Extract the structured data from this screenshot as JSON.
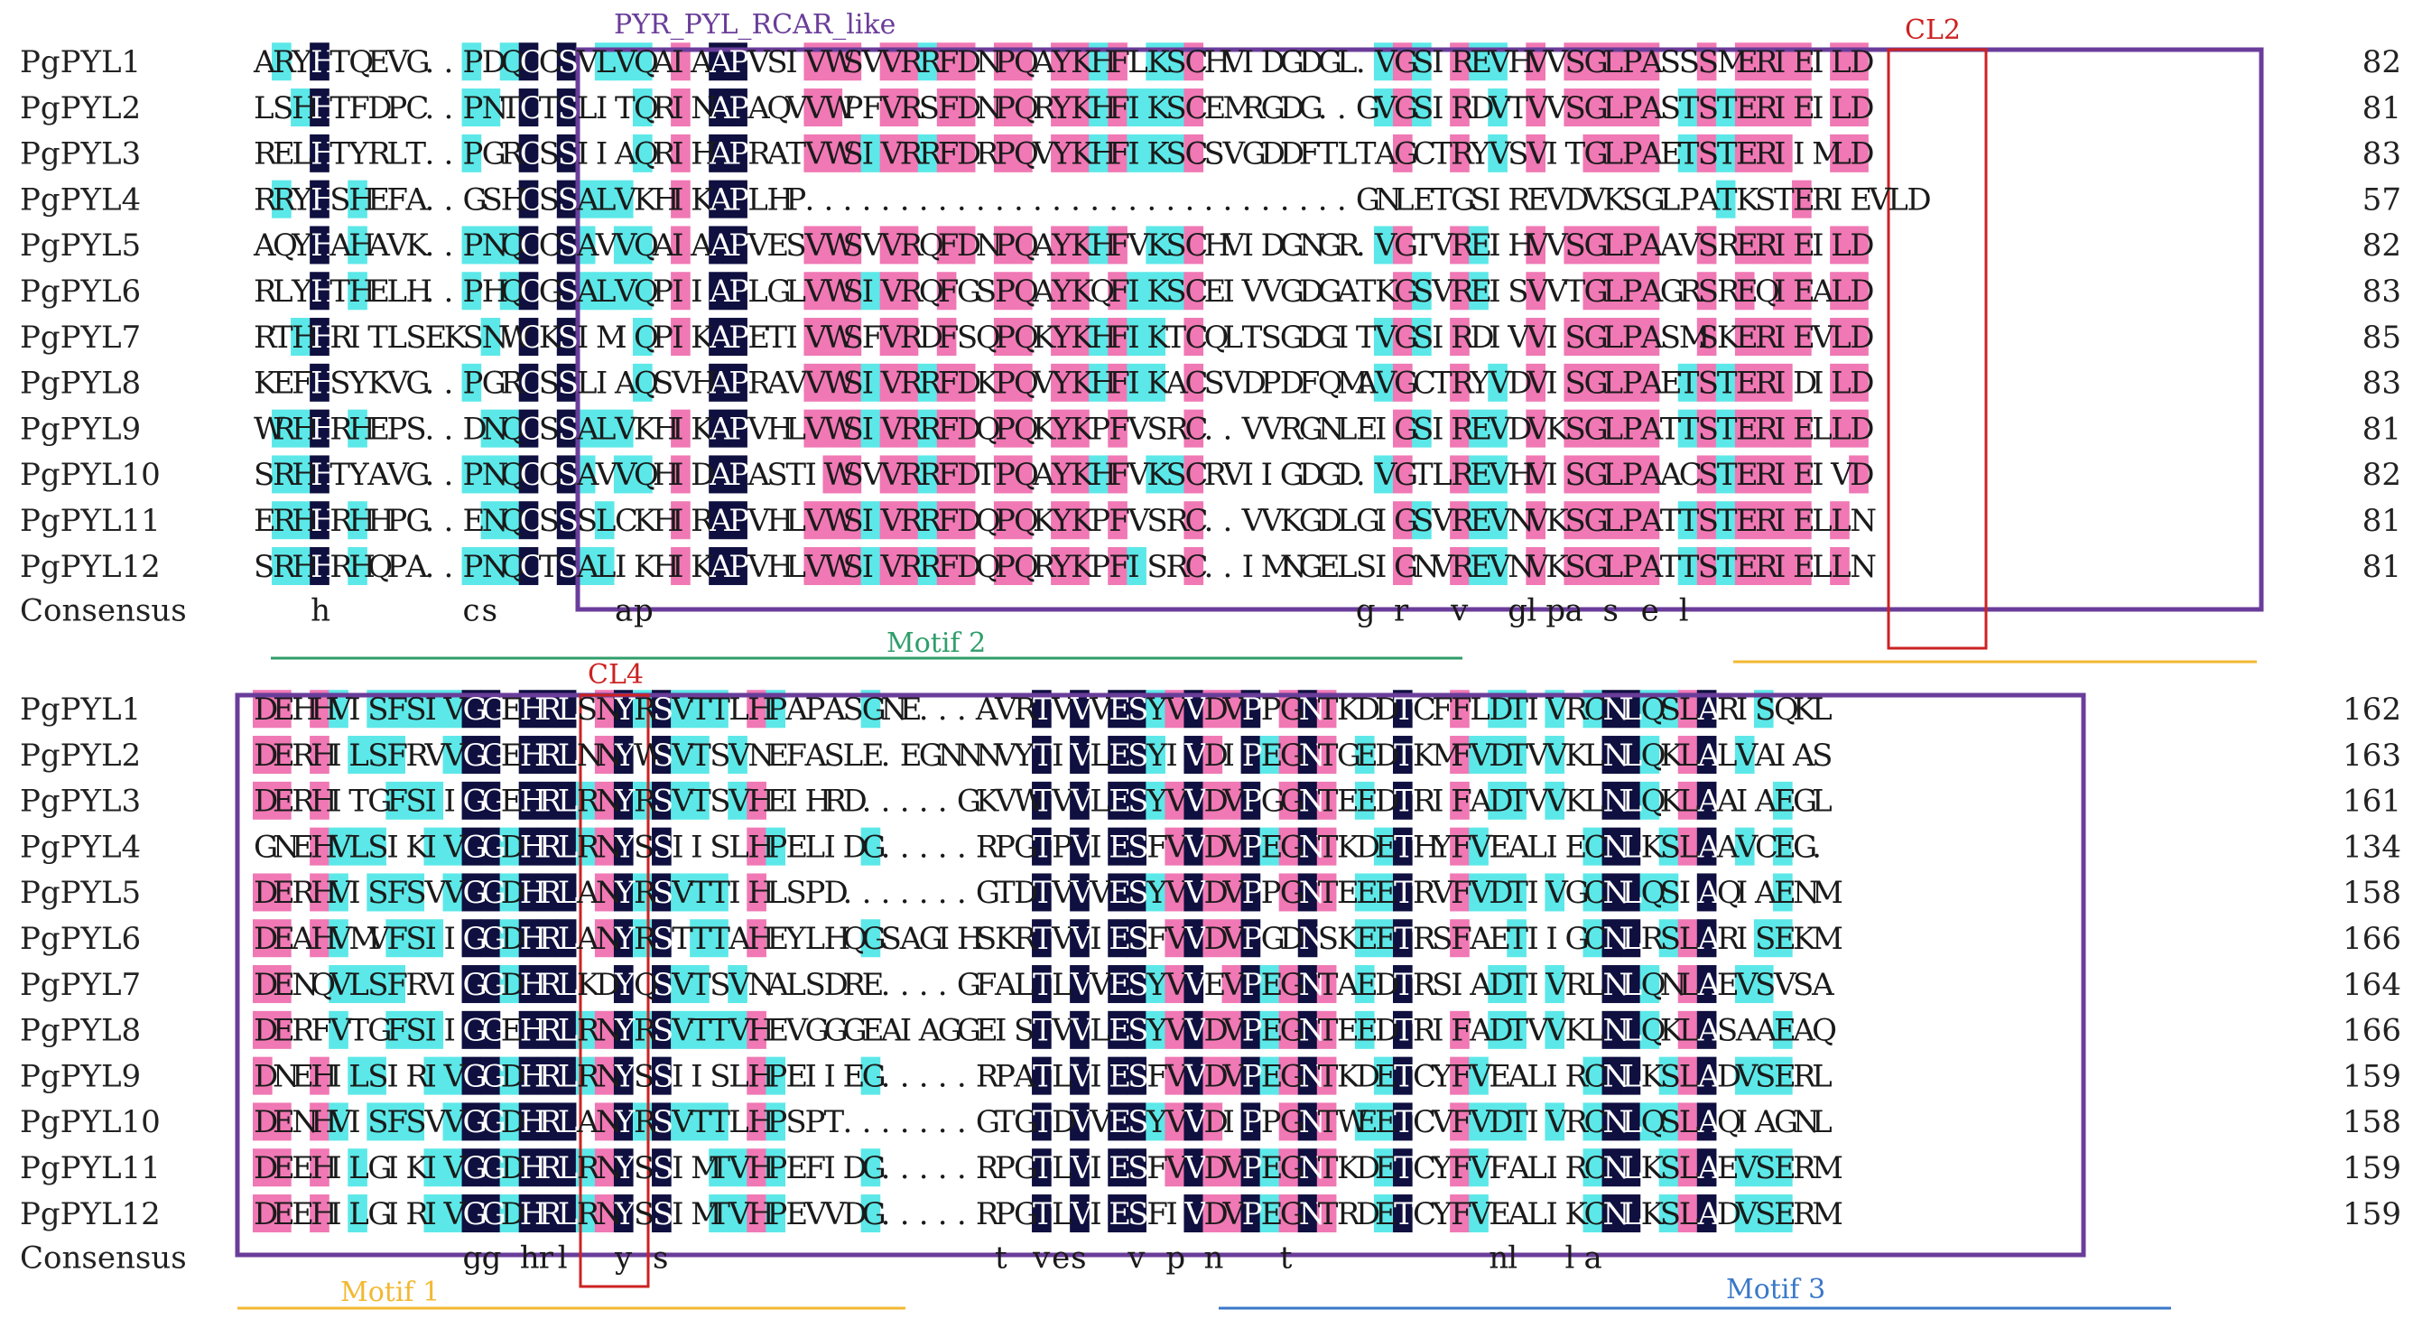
{
  "domain_colors": {
    "identical": "#0f0f40",
    "high": "#f078b4",
    "medium": "#5ce8e8",
    "box": "#6a3d9a",
    "red_box": "#cc2222",
    "motif1": "#f2b832",
    "motif2": "#2f9e6a",
    "motif3": "#3a78c8"
  },
  "annotations": {
    "domain_label": "PYR_PYL_RCAR_like",
    "cl2": "CL2",
    "cl4": "CL4",
    "motif1": "Motif 1",
    "motif2": "Motif 2",
    "motif3": "Motif 3"
  },
  "blocks": [
    {
      "rows": [
        {
          "name": "PgPYL1",
          "seq": "ARYHTQEVG..PDQCCSVLVQAIAAPVSIVWSVVRRFDNPQAYKHFLKSCHVIDGDGL.VGSIREVHVVSGLPASSSMERIEILD",
          "end": "82"
        },
        {
          "name": "PgPYL2",
          "seq": "LSHHTFDPC..PNTCTSLITQRINAPAQVVWPFVRSFDNPQRYKHFIKSCEMRGDG..GVGSIRDVTVVSGLPASTSTERIEILD",
          "end": "81"
        },
        {
          "name": "PgPYL3",
          "seq": "RELHTYRLT..PGRCSSIIAQRIHAPRATVWSIVRRFDRPQVYKHFIKSCSVGDDFTLTAGCTRYVSVITGLPAETSTERIIMLD",
          "end": "83"
        },
        {
          "name": "PgPYL4",
          "seq": "RRYHSHEFA..GSHCSSALVKHIKAPLHP.............................GNLETGSIREVDVKSGLPATKSTERIEVLD",
          "end": "57"
        },
        {
          "name": "PgPYL5",
          "seq": "AQYHAHAVK..PNQCCSAVVQAIAAPVESVWSVVRQFDNPQAYKHFVKSCHVIDGNGR.VGTVREIHVVSGLPAAVSRERIEILD",
          "end": "82"
        },
        {
          "name": "PgPYL6",
          "seq": "RLYHTHELH..PHQCGSALVQPIIAPLGLVWSIVRQFGSPQAYKQFIKSCEIVVGDGATKGSVREISVVTGLPAGRSREQIEALD",
          "end": "83"
        },
        {
          "name": "PgPYL7",
          "seq": "RTHHRITLSEKSNWCKSIMIQPIKAPETIVWSFVRDFSQPQKYKHFIKTCQLTSGDGITVGSIRDIVVISGLPASMSKERIEVLD",
          "end": "85"
        },
        {
          "name": "PgPYL8",
          "seq": "KEFHSYKVG..PGRCSSLIAQSVHAPRAVVWSIVRRFDKPQVYKHFIKACSVDPDFQMAVGCTRYVDVISGLPAETSTERIDILD",
          "end": "83"
        },
        {
          "name": "PgPYL9",
          "seq": "WRHHRHEPS..DNQCSSALVKHIKAPVHLVWSIVRRFDQPQKYKPFVSRC..VVRGNLEIGSIREVDVKSGLPATTSTERIELLD",
          "end": "81"
        },
        {
          "name": "PgPYL10",
          "seq": "SRHHTYAVG..PNQCCSAVVQHIDAPASTIWSVVRRFDTPQAYKHFVKSCRVIIGDGD.VGTLREVHVISGLPAACSTERIEIVD",
          "end": "82"
        },
        {
          "name": "PgPYL11",
          "seq": "ERHHRHHPG..ENQCSSSLCKHIRAPVHLVWSIVRRFDQPQKYKPFVSRC..VVKGDLGIGSVREVNVKSGLPATTSTERIELLN",
          "end": "81"
        },
        {
          "name": "PgPYL12",
          "seq": "SRHHRHQPA..PNQCTSALIKHIKAPVHLVWSIVRRFDQPQRYKPFISRC..IMNGELSIGNVREVNVKSGLPATTSTERIELLN",
          "end": "81"
        }
      ],
      "consensus_label": "Consensus",
      "consensus": "   h       cs      ap                                     g r  v  glpa s e l  "
    },
    {
      "rows": [
        {
          "name": "PgPYL1",
          "seq": "DEHHVISFSIVGGEHRLSNYRSVTTLHPAPASGNE...AVRTVVVESYVVDVPPGNTKDDTCFFLDTIVRCNLQSLARISQKL",
          "end": "162"
        },
        {
          "name": "PgPYL2",
          "seq": "DERHILSFRVVGGEHRLNNYWSVTSVNEFASLE.EGNNNVYTIVLESYIVDIPEGNTGEDTKMFVDTVVKLNLQKLALVAIAS",
          "end": "163"
        },
        {
          "name": "PgPYL3",
          "seq": "DERHITGFSIIGGEHRLRNYRSVTSVHEIHRD.....GKVWTVVLESYVVDVPGGNTEEDTRIFADTVVKLNLQKLAAIAEGL",
          "end": "161"
        },
        {
          "name": "PgPYL4",
          "seq": "GNEHVLSIKIVGGDHRLRNYSSIISLHPELIDG.....RPGTPVIESFVVDVPEGNTKDETHYFVEALIECNLKSLAAVCEG.",
          "end": "134"
        },
        {
          "name": "PgPYL5",
          "seq": "DERHVISFSVVGGDHRLANYRSVTTIHLSPD.......GTDTVVVESYVVDVPPGNTEEETRVFVDTIVGCNLQSIAQIAENM",
          "end": "158"
        },
        {
          "name": "PgPYL6",
          "seq": "DEAHVMVFSIIGGDHRLANYRSTTTAHEYLHQGSAGIHSKRTVVIESFVVDVPGDNSKEETRSFAETIIGCNLRSLARISEKM",
          "end": "166"
        },
        {
          "name": "PgPYL7",
          "seq": "DENQVLSFRVIGGDHRLKDYQSVTSVNALSDRE....GFALTLVVESYVVEVPEGNTAEDTRSIADTIVRLNLQNLAEVSVSA",
          "end": "164"
        },
        {
          "name": "PgPYL8",
          "seq": "DERFVTGFSIIGGEHRLRNYRSVTTVHEVGGGEAIAGGEISTVVLESYVVDVPEGNTEEDTRIFADTVVKLNLQKLASAAEAQ",
          "end": "166"
        },
        {
          "name": "PgPYL9",
          "seq": "DNEHILSIRIVGGDHRLRNYSSIISLHPEIIEG.....RPATLVIESFVVDVPEGNTKDETCYFVEALIRCNLKSLADVSERL",
          "end": "159"
        },
        {
          "name": "PgPYL10",
          "seq": "DENHVISFSVVGGDHRLANYRSVTTLHPSPT.......GTGTDVVESYVVDIPPGNTWEETCVFVDTIVRCNLQSLAQIAGNL",
          "end": "158"
        },
        {
          "name": "PgPYL11",
          "seq": "DEEHILGIKIVGGDHRLRNYSSIMTVHPEFIDG.....RPGTLVIESFVVDVPEGNTKDETCYFVFALIRCNLKSLAEVSERM",
          "end": "159"
        },
        {
          "name": "PgPYL12",
          "seq": "DEEHILGIRIVGGDHRLRNYSSIMTVHPEVVDG.....RPGTLVIESFIVDVPEGNTRDETCYFVEALIKCNLKSLADVSERM",
          "end": "159"
        }
      ],
      "consensus_label": "Consensus",
      "consensus": "           gg hrl  y s                 t ves  v p n   t          nl  la       "
    }
  ]
}
